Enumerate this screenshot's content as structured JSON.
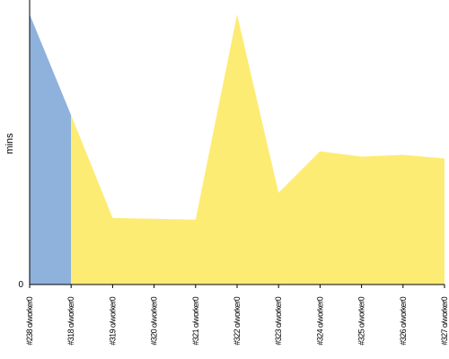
{
  "chart_data": {
    "type": "area",
    "ylabel": "mins",
    "y_tick_labels": [
      "0"
    ],
    "categories": [
      "#238 o/worker0",
      "#318 o/worker0",
      "#319 o/worker0",
      "#320 o/worker0",
      "#321 o/worker0",
      "#322 o/worker0",
      "#323 o/worker0",
      "#324 o/worker0",
      "#325 o/worker0",
      "#326 o/worker0",
      "#327 o/worker0"
    ],
    "ylim": [
      0,
      60
    ],
    "grid": false,
    "legend": "none",
    "series": [
      {
        "color": "#8fb2dc",
        "values": [
          60,
          37.6,
          null,
          null,
          null,
          null,
          null,
          null,
          null,
          null,
          null
        ]
      },
      {
        "color": "#fdec74",
        "values": [
          null,
          37.6,
          14.8,
          14.6,
          14.4,
          60,
          20.4,
          29.6,
          28.4,
          28.8,
          28
        ]
      }
    ]
  }
}
